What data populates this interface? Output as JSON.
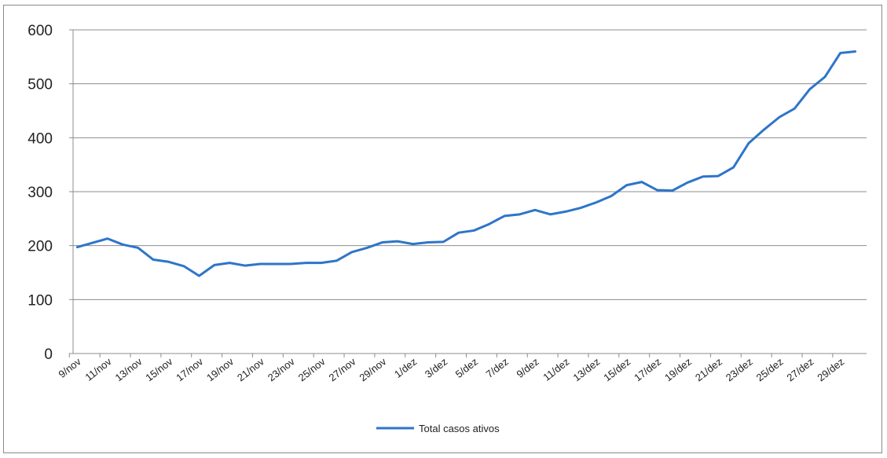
{
  "chart_data": {
    "type": "line",
    "title": "",
    "xlabel": "",
    "ylabel": "",
    "ylim": [
      0,
      600
    ],
    "yticks": [
      "0",
      "100",
      "200",
      "300",
      "400",
      "500",
      "600"
    ],
    "xtick_labels": [
      "9/nov",
      "11/nov",
      "13/nov",
      "15/nov",
      "17/nov",
      "19/nov",
      "21/nov",
      "23/nov",
      "25/nov",
      "27/nov",
      "29/nov",
      "1/dez",
      "3/dez",
      "5/dez",
      "7/dez",
      "9/dez",
      "11/dez",
      "13/dez",
      "15/dez",
      "17/dez",
      "19/dez",
      "21/dez",
      "23/dez",
      "25/dez",
      "27/dez",
      "29/dez"
    ],
    "grid": "horizontal",
    "legend_position": "bottom",
    "x": [
      "9/nov",
      "10/nov",
      "11/nov",
      "12/nov",
      "13/nov",
      "14/nov",
      "15/nov",
      "16/nov",
      "17/nov",
      "18/nov",
      "19/nov",
      "20/nov",
      "21/nov",
      "22/nov",
      "23/nov",
      "24/nov",
      "25/nov",
      "26/nov",
      "27/nov",
      "28/nov",
      "29/nov",
      "30/nov",
      "1/dez",
      "2/dez",
      "3/dez",
      "4/dez",
      "5/dez",
      "6/dez",
      "7/dez",
      "8/dez",
      "9/dez",
      "10/dez",
      "11/dez",
      "12/dez",
      "13/dez",
      "14/dez",
      "15/dez",
      "16/dez",
      "17/dez",
      "18/dez",
      "19/dez",
      "20/dez",
      "21/dez",
      "22/dez",
      "23/dez",
      "24/dez",
      "25/dez",
      "26/dez",
      "27/dez",
      "28/dez",
      "29/dez",
      "30/dez"
    ],
    "series": [
      {
        "name": "Total casos ativos",
        "color": "#2e75c9",
        "values": [
          197,
          205,
          213,
          202,
          196,
          174,
          170,
          162,
          144,
          164,
          168,
          163,
          166,
          166,
          166,
          168,
          168,
          172,
          188,
          196,
          206,
          208,
          203,
          206,
          207,
          224,
          228,
          240,
          255,
          258,
          266,
          258,
          263,
          270,
          280,
          292,
          312,
          318,
          303,
          302,
          317,
          328,
          329,
          345,
          390,
          415,
          438,
          454,
          490,
          513,
          557,
          560
        ]
      }
    ]
  }
}
